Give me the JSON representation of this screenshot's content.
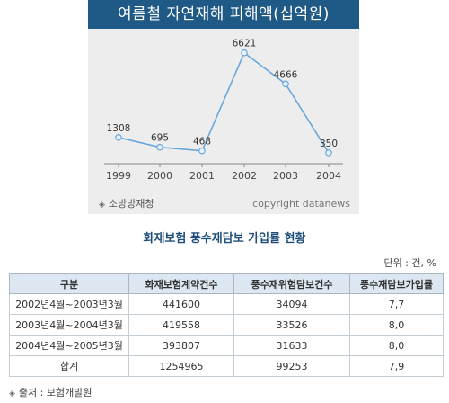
{
  "chart": {
    "title": "여름철 자연재해 피해액(십억원)",
    "source": "소방방재청",
    "copyright": "copyright datanews"
  },
  "chart_data": {
    "type": "line",
    "categories": [
      "1999",
      "2000",
      "2001",
      "2002",
      "2003",
      "2004"
    ],
    "values": [
      1308,
      695,
      468,
      6621,
      4666,
      350
    ],
    "value_labels": [
      "1308",
      "695",
      "468",
      "6621",
      "4666",
      "350"
    ],
    "ylim": [
      0,
      7000
    ],
    "grid": false,
    "line_color": "#6aa7dd",
    "point_fill": "#e9f2fb"
  },
  "table": {
    "title": "화재보험 풍수재담보 가입률 현황",
    "unit": "단위 : 건, %",
    "headers": [
      "구분",
      "화재보험계약건수",
      "풍수재위험담보건수",
      "풍수재담보가입률"
    ],
    "rows": [
      [
        "2002년4월~2003년3월",
        "441600",
        "34094",
        "7,7"
      ],
      [
        "2003년4월~2004년3월",
        "419558",
        "33526",
        "8,0"
      ],
      [
        "2004년4월~2005년3월",
        "393807",
        "31633",
        "8,0"
      ],
      [
        "합계",
        "1254965",
        "99253",
        "7,9"
      ]
    ],
    "source": "출처 : 보험개발원"
  }
}
